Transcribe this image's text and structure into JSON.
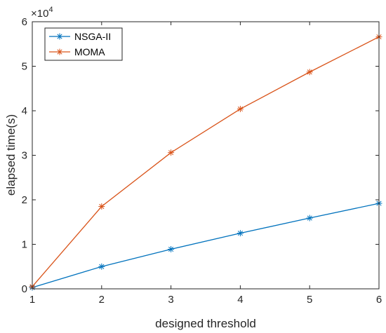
{
  "chart_data": {
    "type": "line",
    "xlabel": "designed threshold",
    "ylabel": "elapsed time(s)",
    "x": [
      1,
      2,
      3,
      4,
      5,
      6
    ],
    "xlim": [
      1,
      6
    ],
    "ylim": [
      0,
      60000
    ],
    "x_ticks": [
      "1",
      "2",
      "3",
      "4",
      "5",
      "6"
    ],
    "y_ticks": [
      "0",
      "1",
      "2",
      "3",
      "4",
      "5",
      "6"
    ],
    "y_exponent_base": "×10",
    "y_exponent_power": "4",
    "y_multiplier": 10000,
    "grid": false,
    "legend_position": "top-left",
    "series": [
      {
        "name": "NSGA-II",
        "color": "#0072BD",
        "marker": "asterisk",
        "values": [
          300,
          5000,
          8900,
          12500,
          15900,
          19200
        ]
      },
      {
        "name": "MOMA",
        "color": "#D95319",
        "marker": "asterisk",
        "values": [
          500,
          18500,
          30600,
          40400,
          48700,
          56600
        ]
      }
    ]
  }
}
